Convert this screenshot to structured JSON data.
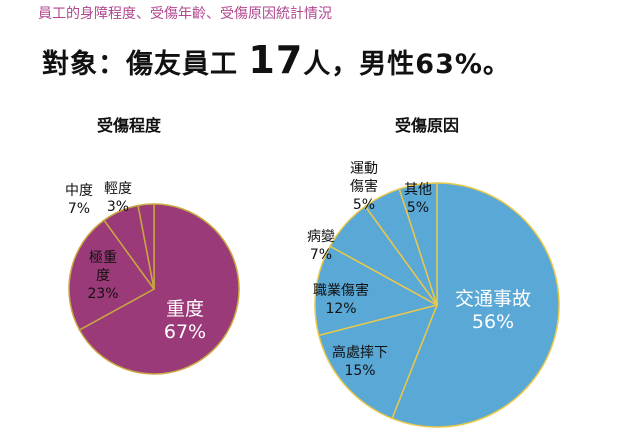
{
  "subtitle": "員工的身障程度、受傷年齡、受傷原因統計情況",
  "headline": {
    "prefix": "對象：傷友員工",
    "count": "17",
    "suffix": "人，男性63%。"
  },
  "chart_data": [
    {
      "type": "pie",
      "title": "受傷程度",
      "color": "#9b3a78",
      "stroke": "#c9a640",
      "slices": [
        {
          "label": "重度",
          "value": 67,
          "text": "67%"
        },
        {
          "label": "極重度",
          "value": 23,
          "text": "23%"
        },
        {
          "label": "中度",
          "value": 7,
          "text": "7%"
        },
        {
          "label": "輕度",
          "value": 3,
          "text": "3%"
        }
      ]
    },
    {
      "type": "pie",
      "title": "受傷原因",
      "color": "#5aa8d6",
      "stroke": "#e8c84a",
      "slices": [
        {
          "label": "交通事故",
          "value": 56,
          "text": "56%"
        },
        {
          "label": "高處摔下",
          "value": 15,
          "text": "15%"
        },
        {
          "label": "職業傷害",
          "value": 12,
          "text": "12%"
        },
        {
          "label": "病變",
          "value": 7,
          "text": "7%"
        },
        {
          "label": "運動傷害",
          "value": 5,
          "text": "5%"
        },
        {
          "label": "其他",
          "value": 5,
          "text": "5%"
        }
      ]
    }
  ]
}
